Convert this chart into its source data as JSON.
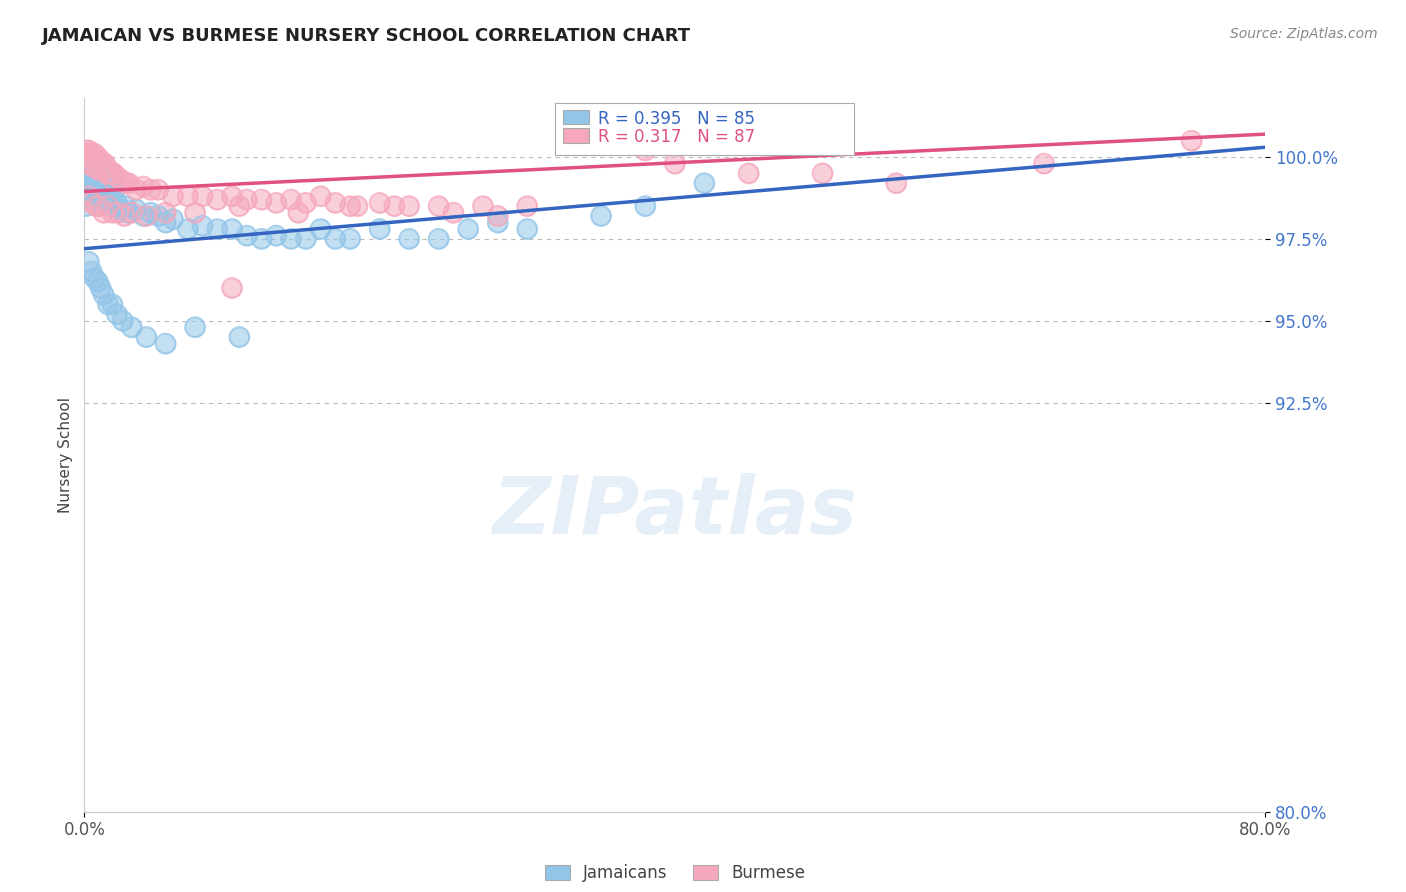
{
  "title": "JAMAICAN VS BURMESE NURSERY SCHOOL CORRELATION CHART",
  "source_text": "Source: ZipAtlas.com",
  "ylabel": "Nursery School",
  "xlim": [
    0.0,
    80.0
  ],
  "ylim": [
    80.0,
    101.8
  ],
  "yticks": [
    80.0,
    92.5,
    95.0,
    97.5,
    100.0
  ],
  "yticklabels": [
    "80.0%",
    "92.5%",
    "95.0%",
    "97.5%",
    "100.0%"
  ],
  "blue_R": 0.395,
  "blue_N": 85,
  "pink_R": 0.317,
  "pink_N": 87,
  "blue_color": "#92C5E8",
  "pink_color": "#F5A8BC",
  "blue_line_color": "#3465C0",
  "pink_line_color": "#E05080",
  "legend_label_blue": "Jamaicans",
  "legend_label_pink": "Burmese",
  "blue_scatter_x": [
    0.1,
    0.15,
    0.2,
    0.2,
    0.25,
    0.3,
    0.3,
    0.35,
    0.4,
    0.4,
    0.5,
    0.5,
    0.5,
    0.6,
    0.6,
    0.7,
    0.7,
    0.8,
    0.8,
    0.9,
    0.9,
    1.0,
    1.0,
    1.0,
    1.1,
    1.1,
    1.2,
    1.2,
    1.3,
    1.3,
    1.4,
    1.5,
    1.5,
    1.6,
    1.7,
    1.8,
    1.9,
    2.0,
    2.0,
    2.2,
    2.5,
    2.8,
    3.0,
    3.5,
    4.0,
    4.5,
    5.0,
    5.5,
    6.0,
    7.0,
    8.0,
    9.0,
    10.0,
    11.0,
    12.0,
    13.0,
    14.0,
    15.0,
    16.0,
    17.0,
    18.0,
    20.0,
    22.0,
    24.0,
    26.0,
    28.0,
    30.0,
    35.0,
    38.0,
    42.0,
    0.3,
    0.5,
    0.7,
    0.9,
    1.1,
    1.3,
    1.6,
    1.9,
    2.2,
    2.6,
    3.2,
    4.2,
    5.5,
    7.5,
    10.5
  ],
  "blue_scatter_y": [
    98.5,
    99.0,
    98.8,
    99.2,
    99.5,
    99.2,
    99.5,
    99.3,
    99.0,
    99.5,
    99.2,
    99.4,
    99.6,
    99.3,
    99.5,
    99.1,
    99.4,
    99.2,
    99.5,
    99.0,
    99.3,
    98.8,
    99.2,
    99.5,
    99.0,
    99.3,
    98.9,
    99.2,
    98.8,
    99.1,
    99.0,
    98.7,
    99.0,
    98.8,
    98.9,
    98.7,
    98.8,
    98.5,
    98.9,
    98.6,
    98.4,
    98.5,
    98.3,
    98.4,
    98.2,
    98.3,
    98.2,
    98.0,
    98.1,
    97.8,
    97.9,
    97.8,
    97.8,
    97.6,
    97.5,
    97.6,
    97.5,
    97.5,
    97.8,
    97.5,
    97.5,
    97.8,
    97.5,
    97.5,
    97.8,
    98.0,
    97.8,
    98.2,
    98.5,
    99.2,
    96.8,
    96.5,
    96.3,
    96.2,
    96.0,
    95.8,
    95.5,
    95.5,
    95.2,
    95.0,
    94.8,
    94.5,
    94.3,
    94.8,
    94.5
  ],
  "pink_scatter_x": [
    0.1,
    0.15,
    0.2,
    0.25,
    0.3,
    0.3,
    0.35,
    0.4,
    0.4,
    0.5,
    0.5,
    0.6,
    0.6,
    0.7,
    0.7,
    0.8,
    0.9,
    0.9,
    1.0,
    1.0,
    1.1,
    1.1,
    1.2,
    1.2,
    1.3,
    1.4,
    1.5,
    1.5,
    1.6,
    1.7,
    1.8,
    1.9,
    2.0,
    2.0,
    2.2,
    2.5,
    2.8,
    3.0,
    3.5,
    4.0,
    4.5,
    5.0,
    6.0,
    7.0,
    8.0,
    9.0,
    10.0,
    11.0,
    12.0,
    13.0,
    14.0,
    15.0,
    16.0,
    17.0,
    18.0,
    20.0,
    22.0,
    24.0,
    27.0,
    30.0,
    0.3,
    0.5,
    0.8,
    1.0,
    1.3,
    1.6,
    1.9,
    2.3,
    2.7,
    3.2,
    4.2,
    5.5,
    7.5,
    10.5,
    14.5,
    18.5,
    21.0,
    25.0,
    28.0,
    10.0,
    38.0,
    40.0,
    45.0,
    50.0,
    55.0,
    65.0,
    75.0
  ],
  "pink_scatter_y": [
    100.1,
    100.2,
    100.0,
    100.1,
    99.8,
    100.2,
    100.0,
    99.8,
    100.1,
    99.8,
    100.0,
    99.7,
    100.0,
    99.8,
    100.1,
    99.7,
    99.8,
    100.0,
    99.6,
    99.9,
    99.7,
    99.9,
    99.6,
    99.8,
    99.6,
    99.8,
    99.5,
    99.7,
    99.5,
    99.5,
    99.5,
    99.5,
    99.3,
    99.5,
    99.4,
    99.3,
    99.2,
    99.2,
    99.0,
    99.1,
    99.0,
    99.0,
    98.8,
    98.8,
    98.8,
    98.7,
    98.8,
    98.7,
    98.7,
    98.6,
    98.7,
    98.6,
    98.8,
    98.6,
    98.5,
    98.6,
    98.5,
    98.5,
    98.5,
    98.5,
    98.8,
    98.6,
    98.5,
    98.5,
    98.3,
    98.5,
    98.3,
    98.3,
    98.2,
    98.3,
    98.2,
    98.3,
    98.3,
    98.5,
    98.3,
    98.5,
    98.5,
    98.3,
    98.2,
    96.0,
    100.2,
    99.8,
    99.5,
    99.5,
    99.2,
    99.8,
    100.5
  ]
}
